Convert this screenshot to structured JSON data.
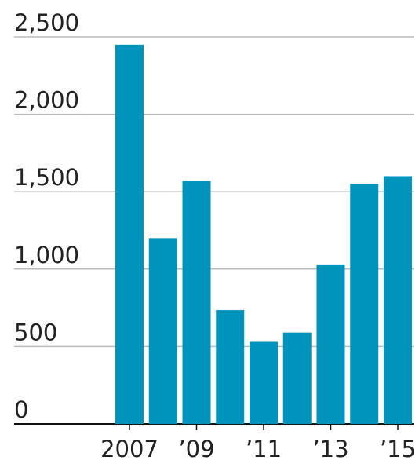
{
  "chart_data": {
    "type": "bar",
    "categories": [
      "2007",
      null,
      "’09",
      null,
      "’11",
      null,
      "’13",
      null,
      "’15"
    ],
    "values": [
      2450,
      1200,
      1570,
      735,
      530,
      590,
      1030,
      1550,
      1600
    ],
    "color": "#0093bb",
    "ylim": [
      0,
      2500
    ],
    "yticks": [
      0,
      500,
      {
        "value": 1000,
        "label": "1,000"
      },
      {
        "value": 1500,
        "label": "1,500"
      },
      {
        "value": 2000,
        "label": "2,000"
      },
      {
        "value": 2500,
        "label": "2,500"
      }
    ],
    "grid": true
  }
}
